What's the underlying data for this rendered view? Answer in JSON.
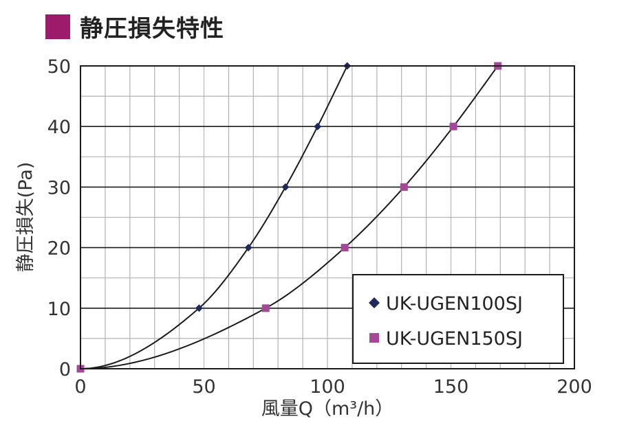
{
  "header": {
    "title": "静圧損失特性"
  },
  "colors": {
    "accent": "#9c1b6a",
    "series1": "#1f2a5c",
    "series2": "#a5489a",
    "line": "#1a1a1a",
    "grid": "#b3b3b3"
  },
  "chart_data": {
    "type": "line",
    "title": "静圧損失特性",
    "xlabel": "風量Q（m³/h）",
    "ylabel": "静圧損失(Pa)",
    "xlim": [
      0,
      200
    ],
    "ylim": [
      0,
      50
    ],
    "x_ticks": [
      "0",
      "50",
      "100",
      "150",
      "200"
    ],
    "y_ticks": [
      "0",
      "10",
      "20",
      "30",
      "40",
      "50"
    ],
    "minor_x_step": 10,
    "minor_y_step": 5,
    "grid": true,
    "legend_position": "bottom-right",
    "series": [
      {
        "name": "UK-UGEN100SJ",
        "marker": "diamond",
        "color": "#1f2a5c",
        "x": [
          0,
          48,
          68,
          83,
          96,
          108
        ],
        "y": [
          0,
          10,
          20,
          30,
          40,
          50
        ]
      },
      {
        "name": "UK-UGEN150SJ",
        "marker": "square",
        "color": "#a5489a",
        "x": [
          0,
          75,
          107,
          131,
          151,
          169
        ],
        "y": [
          0,
          10,
          20,
          30,
          40,
          50
        ]
      }
    ]
  }
}
